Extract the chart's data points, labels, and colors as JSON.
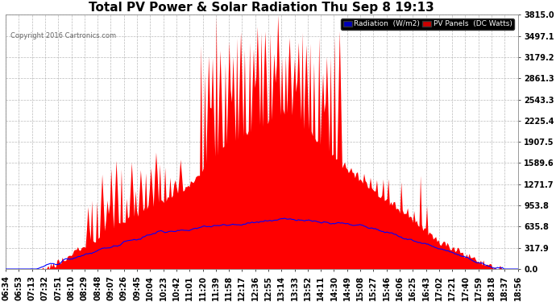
{
  "title": "Total PV Power & Solar Radiation Thu Sep 8 19:13",
  "copyright": "Copyright 2016 Cartronics.com",
  "y_max": 3815.0,
  "y_ticks": [
    0.0,
    317.9,
    635.8,
    953.8,
    1271.7,
    1589.6,
    1907.5,
    2225.4,
    2543.3,
    2861.3,
    3179.2,
    3497.1,
    3815.0
  ],
  "background_color": "#ffffff",
  "plot_bg_color": "#ffffff",
  "grid_color": "#aaaaaa",
  "radiation_color": "#0000ff",
  "pv_color": "#ff0000",
  "legend_bg": "#000000",
  "legend_radiation_bg": "#0000bb",
  "legend_pv_bg": "#cc0000",
  "title_fontsize": 11,
  "tick_fontsize": 7,
  "x_tick_labels": [
    "06:34",
    "06:53",
    "07:13",
    "07:32",
    "07:51",
    "08:10",
    "08:29",
    "08:48",
    "09:07",
    "09:26",
    "09:45",
    "10:04",
    "10:23",
    "10:42",
    "11:01",
    "11:20",
    "11:39",
    "11:58",
    "12:17",
    "12:36",
    "12:55",
    "13:14",
    "13:33",
    "13:52",
    "14:11",
    "14:30",
    "14:49",
    "15:08",
    "15:27",
    "15:46",
    "16:06",
    "16:25",
    "16:43",
    "17:02",
    "17:21",
    "17:40",
    "17:59",
    "18:18",
    "18:37",
    "18:56"
  ]
}
